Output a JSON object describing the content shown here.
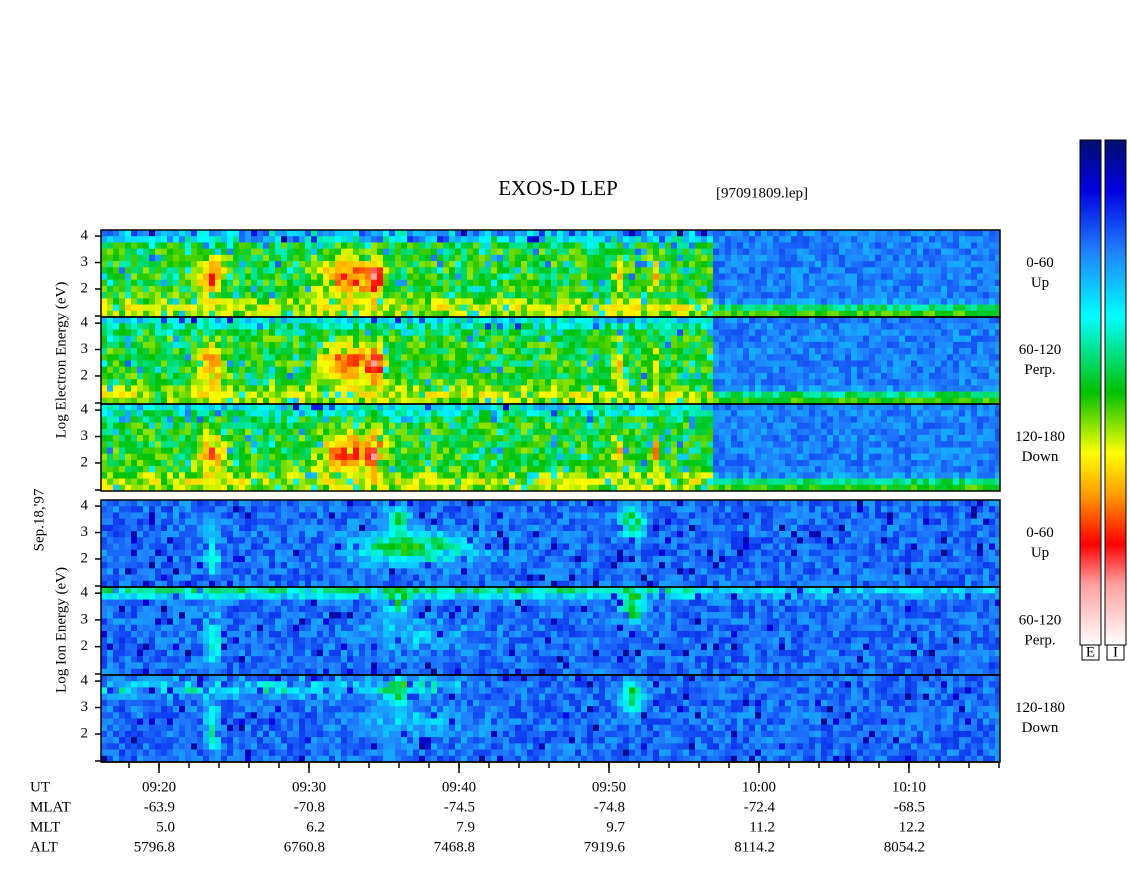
{
  "title": "EXOS-D LEP",
  "file_label": "[97091809.lep]",
  "date_label": "Sep.18,'97",
  "group_labels": [
    "Log Electron Energy (eV)",
    "Log Ion Energy (eV)"
  ],
  "colorbar_labels": [
    "E",
    "I"
  ],
  "time_axis": {
    "xlim": [
      556.13,
      616.07
    ],
    "xticks": [
      {
        "value": 560,
        "label": "09:20"
      },
      {
        "value": 570,
        "label": "09:30"
      },
      {
        "value": 580,
        "label": "09:40"
      },
      {
        "value": 590,
        "label": "09:50"
      },
      {
        "value": 600,
        "label": "10:00"
      },
      {
        "value": 610,
        "label": "10:10"
      }
    ]
  },
  "ephemeris": {
    "row_labels": [
      "UT",
      "MLAT",
      "MLT",
      "ALT"
    ],
    "rows": [
      [
        "-63.9",
        "-70.8",
        "-74.5",
        "-74.8",
        "-72.4",
        "-68.5"
      ],
      [
        "5.0",
        "6.2",
        "7.9",
        "9.7",
        "11.2",
        "12.2"
      ],
      [
        "5796.8",
        "6760.8",
        "7468.8",
        "7919.6",
        "8114.2",
        "8054.2"
      ]
    ]
  },
  "chart_data": [
    {
      "type": "spectrogram",
      "species": "electron",
      "side_label": [
        "0-60",
        "Up"
      ],
      "ylim": [
        0.94,
        4.23
      ],
      "yticks": [
        2,
        3,
        4
      ]
    },
    {
      "type": "spectrogram",
      "species": "electron",
      "side_label": [
        "60-120",
        "Perp."
      ],
      "ylim": [
        0.94,
        4.23
      ],
      "yticks": [
        2,
        3,
        4
      ]
    },
    {
      "type": "spectrogram",
      "species": "electron",
      "side_label": [
        "120-180",
        "Down"
      ],
      "ylim": [
        0.94,
        4.23
      ],
      "yticks": [
        2,
        3,
        4
      ]
    },
    {
      "type": "spectrogram",
      "species": "ion",
      "side_label": [
        "0-60",
        "Up"
      ],
      "ylim": [
        0.94,
        4.23
      ],
      "yticks": [
        2,
        3,
        4
      ]
    },
    {
      "type": "spectrogram",
      "species": "ion",
      "side_label": [
        "60-120",
        "Perp."
      ],
      "ylim": [
        0.94,
        4.23
      ],
      "yticks": [
        2,
        3,
        4
      ]
    },
    {
      "type": "spectrogram",
      "species": "ion",
      "side_label": [
        "120-180",
        "Down"
      ],
      "ylim": [
        0.94,
        4.23
      ],
      "yticks": [
        2,
        3,
        4
      ]
    }
  ]
}
